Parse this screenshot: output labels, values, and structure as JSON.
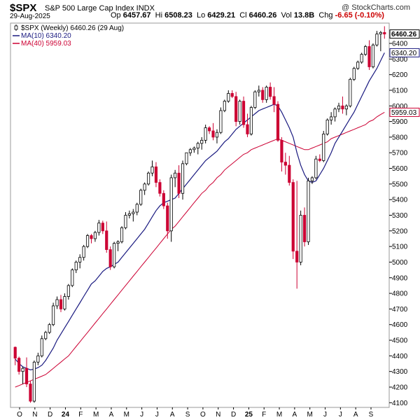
{
  "header": {
    "symbol": "$SPX",
    "description": "S&P 500 Large Cap Index INDX",
    "source": "@ StockCharts.com",
    "date": "29-Aug-2025",
    "open_label": "Op",
    "open": "6457.67",
    "high_label": "Hi",
    "high": "6508.23",
    "low_label": "Lo",
    "low": "6429.21",
    "close_label": "Cl",
    "close": "6460.26",
    "vol_label": "Vol",
    "vol": "13.8B",
    "chg_label": "Chg",
    "chg": "-6.65 (-0.10%)"
  },
  "legend": {
    "price": "$SPX (Weekly) 6460.26 (29 Aug)",
    "ma10": "MA(10) 6340.20",
    "ma40": "MA(40) 5959.03"
  },
  "colors": {
    "up": "#000000",
    "down": "#cc0033",
    "ma10": "#1a1a80",
    "ma40": "#cc0033",
    "price_badge_bg": "#ffffff",
    "ma40_badge_border": "#cc0033",
    "ma10_badge_border": "#1a1a80"
  },
  "chart_data": {
    "type": "candlestick",
    "interval": "weekly",
    "ylim": [
      4070,
      6530
    ],
    "y_ticks": [
      4100,
      4200,
      4300,
      4400,
      4500,
      4600,
      4700,
      4800,
      4900,
      5000,
      5100,
      5200,
      5300,
      5400,
      5500,
      5600,
      5700,
      5800,
      5900,
      6000,
      6100,
      6200,
      6300,
      6400
    ],
    "x_labels": [
      "O",
      "N",
      "D",
      "24",
      "F",
      "M",
      "A",
      "M",
      "J",
      "J",
      "A",
      "S",
      "O",
      "N",
      "D",
      "25",
      "F",
      "M",
      "A",
      "M",
      "J",
      "J",
      "A",
      "S"
    ],
    "last_price_label": "6460.26",
    "ma10_label": "6340.20",
    "ma40_label": "5959.03",
    "candles": [
      {
        "o": 4455,
        "h": 4460,
        "l": 4340,
        "c": 4385
      },
      {
        "o": 4385,
        "h": 4395,
        "l": 4280,
        "c": 4300
      },
      {
        "o": 4300,
        "h": 4330,
        "l": 4220,
        "c": 4320
      },
      {
        "o": 4320,
        "h": 4390,
        "l": 4200,
        "c": 4220
      },
      {
        "o": 4220,
        "h": 4240,
        "l": 4100,
        "c": 4110
      },
      {
        "o": 4110,
        "h": 4370,
        "l": 4100,
        "c": 4360
      },
      {
        "o": 4360,
        "h": 4420,
        "l": 4340,
        "c": 4400
      },
      {
        "o": 4400,
        "h": 4530,
        "l": 4390,
        "c": 4510
      },
      {
        "o": 4510,
        "h": 4560,
        "l": 4500,
        "c": 4550
      },
      {
        "o": 4550,
        "h": 4610,
        "l": 4540,
        "c": 4600
      },
      {
        "o": 4600,
        "h": 4740,
        "l": 4590,
        "c": 4720
      },
      {
        "o": 4720,
        "h": 4780,
        "l": 4700,
        "c": 4760
      },
      {
        "o": 4760,
        "h": 4790,
        "l": 4680,
        "c": 4700
      },
      {
        "o": 4700,
        "h": 4800,
        "l": 4690,
        "c": 4780
      },
      {
        "o": 4780,
        "h": 4860,
        "l": 4760,
        "c": 4850
      },
      {
        "o": 4850,
        "h": 4960,
        "l": 4840,
        "c": 4950
      },
      {
        "o": 4950,
        "h": 5010,
        "l": 4930,
        "c": 5000
      },
      {
        "o": 5000,
        "h": 5050,
        "l": 4960,
        "c": 5030
      },
      {
        "o": 5030,
        "h": 5110,
        "l": 5010,
        "c": 5100
      },
      {
        "o": 5100,
        "h": 5180,
        "l": 5090,
        "c": 5170
      },
      {
        "o": 5170,
        "h": 5180,
        "l": 5120,
        "c": 5150
      },
      {
        "o": 5150,
        "h": 5200,
        "l": 5130,
        "c": 5190
      },
      {
        "o": 5190,
        "h": 5270,
        "l": 5170,
        "c": 5250
      },
      {
        "o": 5250,
        "h": 5265,
        "l": 5180,
        "c": 5200
      },
      {
        "o": 5200,
        "h": 5260,
        "l": 5060,
        "c": 5080
      },
      {
        "o": 5080,
        "h": 5100,
        "l": 4950,
        "c": 4970
      },
      {
        "o": 4970,
        "h": 5130,
        "l": 4960,
        "c": 5120
      },
      {
        "o": 5120,
        "h": 5140,
        "l": 5070,
        "c": 5130
      },
      {
        "o": 5130,
        "h": 5230,
        "l": 5120,
        "c": 5220
      },
      {
        "o": 5220,
        "h": 5320,
        "l": 5210,
        "c": 5300
      },
      {
        "o": 5300,
        "h": 5330,
        "l": 5280,
        "c": 5310
      },
      {
        "o": 5310,
        "h": 5340,
        "l": 5260,
        "c": 5320
      },
      {
        "o": 5320,
        "h": 5380,
        "l": 5300,
        "c": 5370
      },
      {
        "o": 5370,
        "h": 5470,
        "l": 5360,
        "c": 5460
      },
      {
        "o": 5460,
        "h": 5510,
        "l": 5430,
        "c": 5500
      },
      {
        "o": 5500,
        "h": 5580,
        "l": 5490,
        "c": 5570
      },
      {
        "o": 5570,
        "h": 5650,
        "l": 5550,
        "c": 5610
      },
      {
        "o": 5610,
        "h": 5640,
        "l": 5480,
        "c": 5510
      },
      {
        "o": 5510,
        "h": 5530,
        "l": 5420,
        "c": 5440
      },
      {
        "o": 5440,
        "h": 5460,
        "l": 5340,
        "c": 5360
      },
      {
        "o": 5360,
        "h": 5380,
        "l": 5150,
        "c": 5200
      },
      {
        "o": 5200,
        "h": 5560,
        "l": 5130,
        "c": 5540
      },
      {
        "o": 5540,
        "h": 5590,
        "l": 5480,
        "c": 5570
      },
      {
        "o": 5570,
        "h": 5620,
        "l": 5410,
        "c": 5440
      },
      {
        "o": 5440,
        "h": 5650,
        "l": 5400,
        "c": 5630
      },
      {
        "o": 5630,
        "h": 5700,
        "l": 5620,
        "c": 5700
      },
      {
        "o": 5700,
        "h": 5730,
        "l": 5680,
        "c": 5720
      },
      {
        "o": 5720,
        "h": 5740,
        "l": 5700,
        "c": 5730
      },
      {
        "o": 5730,
        "h": 5770,
        "l": 5690,
        "c": 5760
      },
      {
        "o": 5760,
        "h": 5800,
        "l": 5720,
        "c": 5780
      },
      {
        "o": 5780,
        "h": 5880,
        "l": 5760,
        "c": 5860
      },
      {
        "o": 5860,
        "h": 5870,
        "l": 5820,
        "c": 5840
      },
      {
        "o": 5840,
        "h": 5890,
        "l": 5780,
        "c": 5800
      },
      {
        "o": 5800,
        "h": 5850,
        "l": 5760,
        "c": 5830
      },
      {
        "o": 5830,
        "h": 5990,
        "l": 5820,
        "c": 5970
      },
      {
        "o": 5970,
        "h": 6040,
        "l": 5960,
        "c": 6030
      },
      {
        "o": 6030,
        "h": 6100,
        "l": 6020,
        "c": 6080
      },
      {
        "o": 6080,
        "h": 6100,
        "l": 6050,
        "c": 6060
      },
      {
        "o": 6060,
        "h": 6090,
        "l": 5870,
        "c": 5900
      },
      {
        "o": 5900,
        "h": 6040,
        "l": 5880,
        "c": 6030
      },
      {
        "o": 6030,
        "h": 6060,
        "l": 5860,
        "c": 5880
      },
      {
        "o": 5880,
        "h": 5950,
        "l": 5800,
        "c": 5820
      },
      {
        "o": 5820,
        "h": 6000,
        "l": 5810,
        "c": 5990
      },
      {
        "o": 5990,
        "h": 6100,
        "l": 5980,
        "c": 6090
      },
      {
        "o": 6090,
        "h": 6130,
        "l": 6060,
        "c": 6100
      },
      {
        "o": 6100,
        "h": 6120,
        "l": 6020,
        "c": 6040
      },
      {
        "o": 6040,
        "h": 6130,
        "l": 6020,
        "c": 6120
      },
      {
        "o": 6120,
        "h": 6150,
        "l": 6040,
        "c": 6060
      },
      {
        "o": 6060,
        "h": 6120,
        "l": 5960,
        "c": 6010
      },
      {
        "o": 6010,
        "h": 6030,
        "l": 5770,
        "c": 5780
      },
      {
        "o": 5780,
        "h": 5800,
        "l": 5580,
        "c": 5640
      },
      {
        "o": 5640,
        "h": 5700,
        "l": 5560,
        "c": 5620
      },
      {
        "o": 5620,
        "h": 5680,
        "l": 5490,
        "c": 5510
      },
      {
        "o": 5510,
        "h": 5530,
        "l": 5020,
        "c": 5070
      },
      {
        "o": 5070,
        "h": 5520,
        "l": 4830,
        "c": 5000
      },
      {
        "o": 5000,
        "h": 5330,
        "l": 4980,
        "c": 5300
      },
      {
        "o": 5300,
        "h": 5350,
        "l": 5100,
        "c": 5130
      },
      {
        "o": 5130,
        "h": 5540,
        "l": 5110,
        "c": 5520
      },
      {
        "o": 5520,
        "h": 5550,
        "l": 5500,
        "c": 5540
      },
      {
        "o": 5540,
        "h": 5680,
        "l": 5530,
        "c": 5660
      },
      {
        "o": 5660,
        "h": 5690,
        "l": 5640,
        "c": 5650
      },
      {
        "o": 5650,
        "h": 5840,
        "l": 5640,
        "c": 5820
      },
      {
        "o": 5820,
        "h": 5920,
        "l": 5810,
        "c": 5910
      },
      {
        "o": 5910,
        "h": 5960,
        "l": 5880,
        "c": 5930
      },
      {
        "o": 5930,
        "h": 5990,
        "l": 5900,
        "c": 5980
      },
      {
        "o": 5980,
        "h": 6020,
        "l": 5960,
        "c": 6000
      },
      {
        "o": 6000,
        "h": 6060,
        "l": 5950,
        "c": 5980
      },
      {
        "o": 5980,
        "h": 6010,
        "l": 5940,
        "c": 6000
      },
      {
        "o": 6000,
        "h": 6180,
        "l": 5990,
        "c": 6170
      },
      {
        "o": 6170,
        "h": 6250,
        "l": 6160,
        "c": 6240
      },
      {
        "o": 6240,
        "h": 6290,
        "l": 6230,
        "c": 6280
      },
      {
        "o": 6280,
        "h": 6340,
        "l": 6270,
        "c": 6330
      },
      {
        "o": 6330,
        "h": 6390,
        "l": 6320,
        "c": 6380
      },
      {
        "o": 6380,
        "h": 6420,
        "l": 6230,
        "c": 6250
      },
      {
        "o": 6250,
        "h": 6400,
        "l": 6240,
        "c": 6390
      },
      {
        "o": 6390,
        "h": 6480,
        "l": 6380,
        "c": 6460
      },
      {
        "o": 6460,
        "h": 6480,
        "l": 6350,
        "c": 6470
      },
      {
        "o": 6470,
        "h": 6510,
        "l": 6430,
        "c": 6460
      }
    ],
    "ma10": [
      4380,
      4350,
      4330,
      4320,
      4310,
      4315,
      4325,
      4340,
      4370,
      4410,
      4450,
      4500,
      4540,
      4580,
      4620,
      4660,
      4700,
      4740,
      4780,
      4820,
      4860,
      4880,
      4910,
      4940,
      4960,
      4970,
      4985,
      5000,
      5030,
      5060,
      5090,
      5120,
      5150,
      5180,
      5210,
      5250,
      5290,
      5330,
      5360,
      5380,
      5390,
      5400,
      5410,
      5440,
      5470,
      5500,
      5530,
      5560,
      5590,
      5620,
      5650,
      5670,
      5690,
      5710,
      5740,
      5770,
      5790,
      5820,
      5850,
      5870,
      5890,
      5910,
      5930,
      5950,
      5970,
      5980,
      5990,
      6000,
      6010,
      6000,
      5960,
      5910,
      5860,
      5800,
      5700,
      5620,
      5560,
      5520,
      5510,
      5520,
      5560,
      5600,
      5650,
      5700,
      5760,
      5800,
      5840,
      5880,
      5920,
      5960,
      6010,
      6060,
      6110,
      6160,
      6200,
      6240,
      6290,
      6340
    ],
    "ma40": [
      4200,
      4210,
      4220,
      4230,
      4240,
      4250,
      4260,
      4270,
      4280,
      4300,
      4320,
      4340,
      4360,
      4380,
      4400,
      4430,
      4460,
      4490,
      4520,
      4550,
      4580,
      4610,
      4640,
      4670,
      4700,
      4730,
      4760,
      4790,
      4820,
      4850,
      4880,
      4910,
      4940,
      4970,
      5000,
      5030,
      5060,
      5090,
      5120,
      5150,
      5180,
      5210,
      5230,
      5260,
      5290,
      5320,
      5350,
      5380,
      5410,
      5440,
      5460,
      5490,
      5510,
      5540,
      5560,
      5590,
      5610,
      5630,
      5650,
      5670,
      5690,
      5700,
      5720,
      5730,
      5740,
      5750,
      5760,
      5770,
      5780,
      5790,
      5780,
      5770,
      5760,
      5750,
      5740,
      5730,
      5720,
      5720,
      5730,
      5740,
      5750,
      5760,
      5770,
      5790,
      5800,
      5810,
      5820,
      5830,
      5840,
      5850,
      5860,
      5870,
      5880,
      5900,
      5910,
      5930,
      5945,
      5959
    ]
  }
}
